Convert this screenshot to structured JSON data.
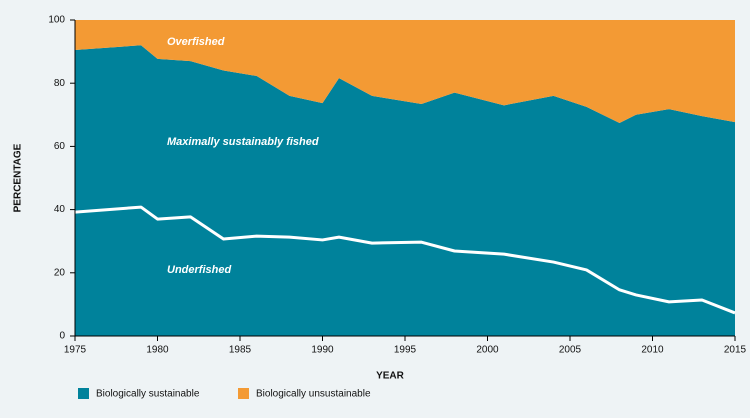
{
  "chart_data": {
    "type": "area",
    "stacked": true,
    "x_label": "YEAR",
    "y_label": "PERCENTAGE",
    "x": [
      1975,
      1979,
      1980,
      1982,
      1984,
      1986,
      1988,
      1990,
      1991,
      1993,
      1996,
      1998,
      2001,
      2004,
      2006,
      2008,
      2009,
      2011,
      2013,
      2015
    ],
    "series": [
      {
        "name": "Biologically sustainable",
        "color": "#00829b",
        "values": [
          90.5,
          92,
          87.7,
          87,
          84,
          82.3,
          76,
          73.7,
          81.6,
          76,
          73.4,
          77,
          73,
          76,
          72.5,
          67.4,
          70,
          71.8,
          69.6,
          67.7
        ]
      },
      {
        "name": "Biologically unsustainable",
        "color": "#f39a34",
        "values": [
          9.5,
          8,
          12.3,
          13,
          16,
          17.7,
          24,
          26.3,
          18.4,
          24,
          26.6,
          23,
          27,
          24,
          27.5,
          32.6,
          30,
          28.2,
          30.4,
          32.3
        ]
      }
    ],
    "overlay_line": {
      "color": "#ffffff",
      "values": [
        39.2,
        40.8,
        37,
        37.7,
        30.7,
        31.6,
        31.3,
        30.4,
        31.3,
        29.4,
        29.7,
        26.9,
        25.9,
        23.4,
        20.9,
        14.6,
        13,
        10.8,
        11.4,
        7.3
      ]
    },
    "annotations": [
      "Overfished",
      "Maximally sustainably fished",
      "Underfished"
    ],
    "xlim": [
      1975,
      2015
    ],
    "xticks": [
      1975,
      1980,
      1985,
      1990,
      1995,
      2000,
      2005,
      2010,
      2015
    ],
    "ylim": [
      0,
      100
    ],
    "yticks": [
      0,
      20,
      40,
      60,
      80,
      100
    ],
    "legend": "bottom"
  }
}
